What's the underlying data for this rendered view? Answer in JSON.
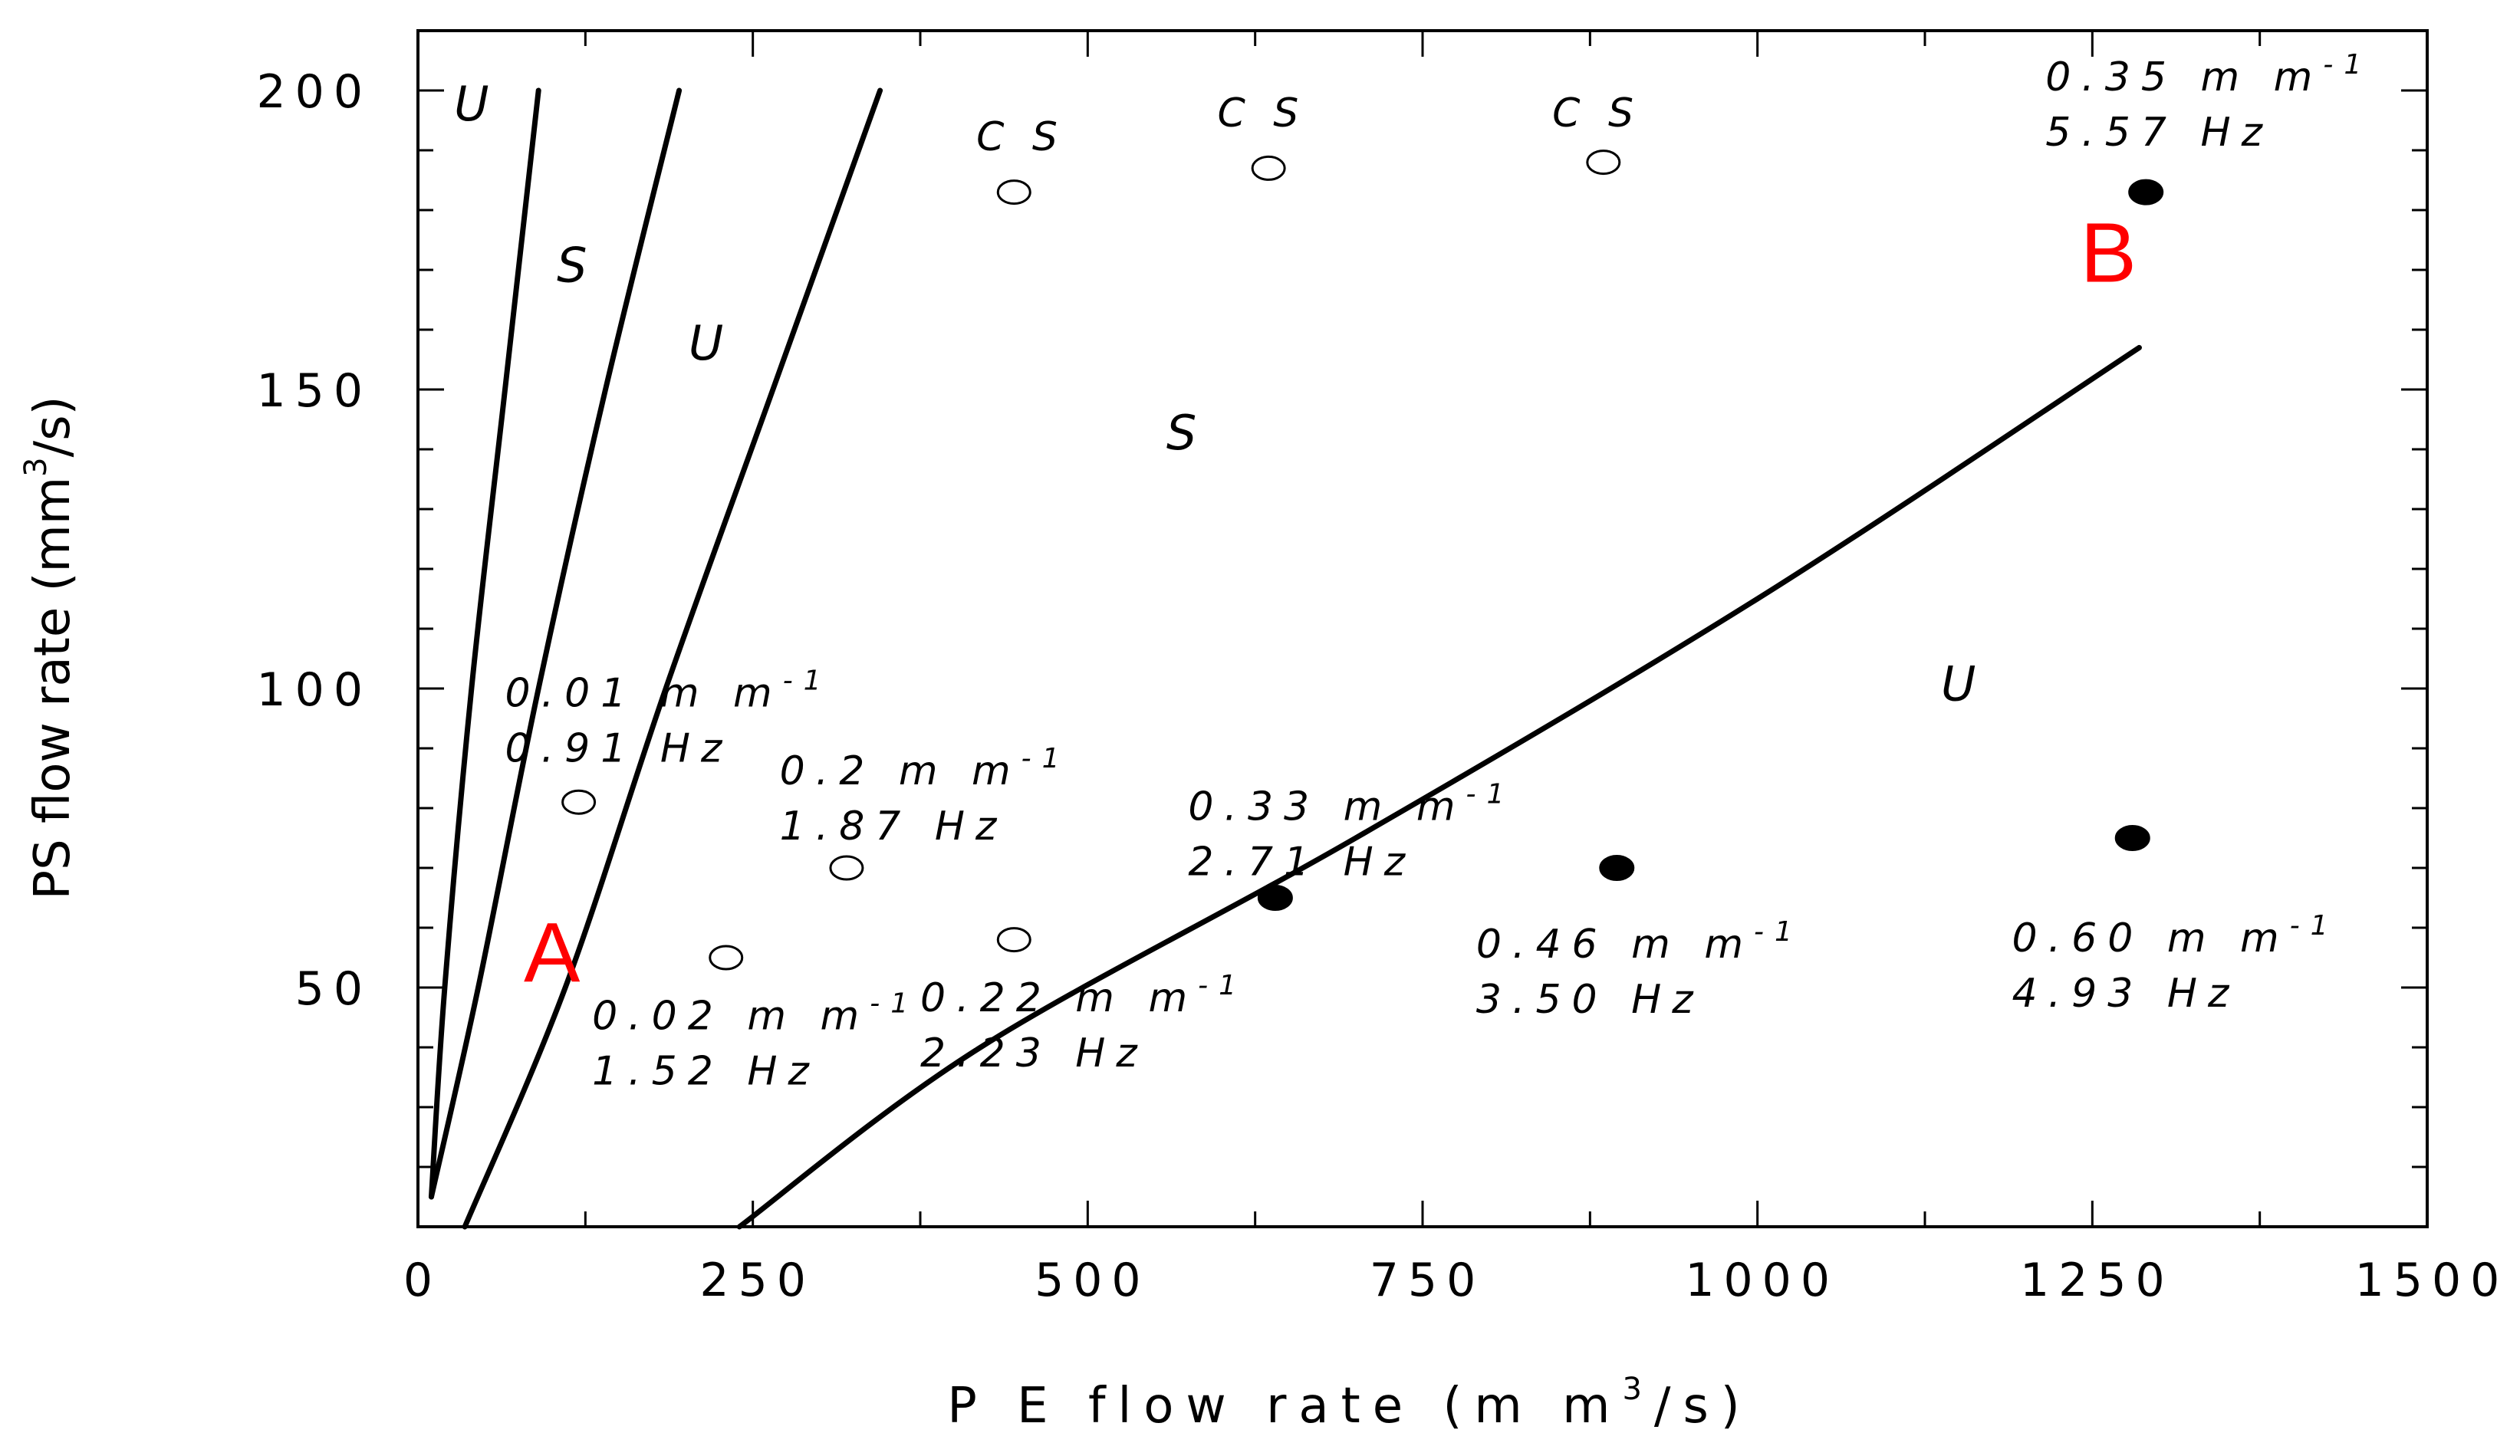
{
  "chart_data": {
    "type": "scatter",
    "xlabel": "P E  flow  rate  (m m 3/s)",
    "xlabel_parts": [
      "P E  flow  rate  (m m",
      "3",
      "/s)"
    ],
    "ylabel": "PS flow rate (mm3/s)",
    "ylabel_parts": [
      "PS flow rate (mm",
      "3",
      "/s)"
    ],
    "xlim": [
      0,
      1500
    ],
    "ylim": [
      10,
      210
    ],
    "xticks": [
      0,
      250,
      500,
      750,
      1000,
      1250,
      1500
    ],
    "xtick_labels": [
      "0",
      "250",
      "500",
      "750",
      "1000",
      "1250",
      "1500"
    ],
    "yticks": [
      50,
      100,
      150,
      200
    ],
    "ytick_labels": [
      "50",
      "100",
      "150",
      "200"
    ],
    "grid": false,
    "boundaries": [
      {
        "points": [
          [
            10,
            15
          ],
          [
            20,
            50
          ],
          [
            40,
            100
          ],
          [
            65,
            150
          ],
          [
            90,
            200
          ]
        ]
      },
      {
        "points": [
          [
            10,
            15
          ],
          [
            45,
            50
          ],
          [
            90,
            100
          ],
          [
            140,
            150
          ],
          [
            195,
            200
          ]
        ]
      },
      {
        "points": [
          [
            35,
            10
          ],
          [
            110,
            50
          ],
          [
            185,
            100
          ],
          [
            265,
            150
          ],
          [
            345,
            200
          ]
        ]
      },
      {
        "points": [
          [
            240,
            10
          ],
          [
            420,
            40
          ],
          [
            700,
            75
          ],
          [
            1000,
            115
          ],
          [
            1285,
            157
          ]
        ]
      }
    ],
    "open_points": [
      {
        "x": 120,
        "y": 81
      },
      {
        "x": 230,
        "y": 55
      },
      {
        "x": 320,
        "y": 70
      },
      {
        "x": 445,
        "y": 58
      },
      {
        "x": 445,
        "y": 183
      },
      {
        "x": 635,
        "y": 187
      },
      {
        "x": 885,
        "y": 188
      }
    ],
    "filled_points": [
      {
        "x": 640,
        "y": 65
      },
      {
        "x": 895,
        "y": 70
      },
      {
        "x": 1280,
        "y": 75
      },
      {
        "x": 1290,
        "y": 183
      }
    ],
    "region_labels": [
      {
        "text": "U",
        "x": 40,
        "y": 195
      },
      {
        "text": "S",
        "x": 115,
        "y": 168
      },
      {
        "text": "U",
        "x": 215,
        "y": 155
      },
      {
        "text": "S",
        "x": 570,
        "y": 140
      },
      {
        "text": "U",
        "x": 1150,
        "y": 98
      }
    ],
    "cs_labels": [
      {
        "text": "C S",
        "x": 450,
        "y": 190
      },
      {
        "text": "C S",
        "x": 630,
        "y": 194
      },
      {
        "text": "C S",
        "x": 880,
        "y": 194
      }
    ],
    "annotations": [
      {
        "line1": "0.01 m m",
        "sup": "-1",
        "line2": "0.91 Hz",
        "x": 65,
        "y": 97
      },
      {
        "line1": "0.02 m m",
        "sup": "-1",
        "line2": "1.52 Hz",
        "x": 130,
        "y": 43
      },
      {
        "line1": "0.2 m m",
        "sup": "-1",
        "line2": "1.87 Hz",
        "x": 270,
        "y": 84
      },
      {
        "line1": "0.22 m m",
        "sup": "-1",
        "line2": "2.23 Hz",
        "x": 375,
        "y": 46
      },
      {
        "line1": "0.33 m m",
        "sup": "-1",
        "line2": "2.71 Hz",
        "x": 575,
        "y": 78
      },
      {
        "line1": "0.46 m m",
        "sup": "-1",
        "line2": "3.50 Hz",
        "x": 790,
        "y": 55
      },
      {
        "line1": "0.60 m m",
        "sup": "-1",
        "line2": "4.93 Hz",
        "x": 1190,
        "y": 56
      },
      {
        "line1": "0.35 m m",
        "sup": "-1",
        "line2": "5.57 Hz",
        "x": 1215,
        "y": 200
      }
    ],
    "marker_labels": [
      {
        "text": "A",
        "x": 100,
        "y": 51,
        "color": "#ff0000"
      },
      {
        "text": "B",
        "x": 1262,
        "y": 168,
        "color": "#ff0000"
      }
    ]
  }
}
